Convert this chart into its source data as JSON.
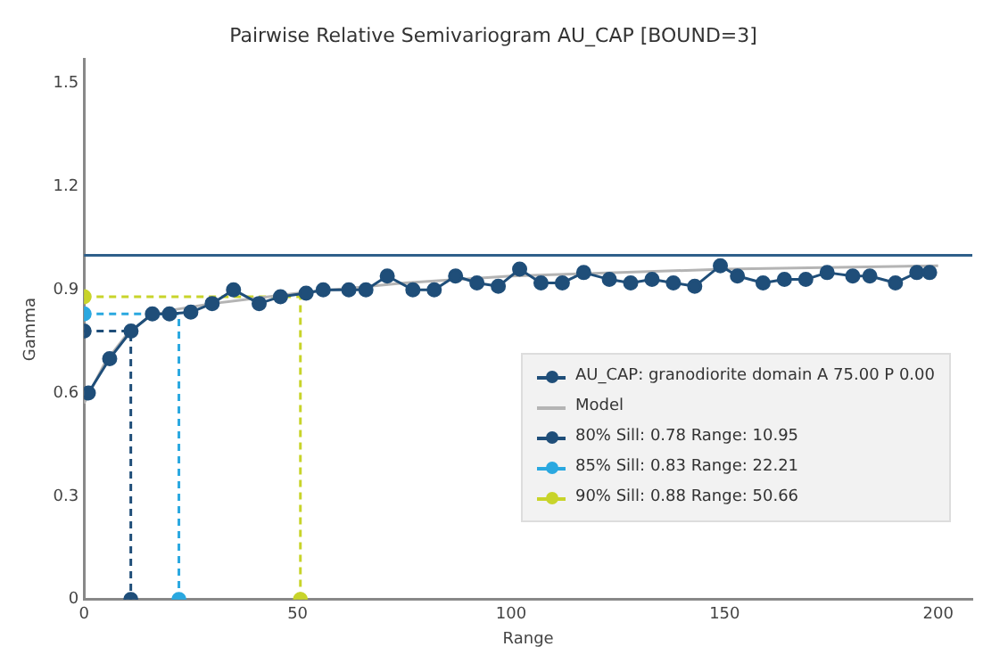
{
  "chart_data": {
    "type": "line",
    "title": "Pairwise Relative Semivariogram AU_CAP [BOUND=3]",
    "xlabel": "Range",
    "ylabel": "Gamma",
    "xlim": [
      0,
      208
    ],
    "xticks": [
      0,
      50,
      100,
      150,
      200
    ],
    "ylim": [
      0,
      1.57
    ],
    "yticks": [
      0,
      0.3,
      0.6,
      0.9,
      1.2,
      1.5
    ],
    "grid": false,
    "legend": "right",
    "ref_lines": [
      {
        "axis": "y",
        "value": 1.0,
        "color": "#2e5f8a"
      }
    ],
    "series": [
      {
        "name": "AU_CAP: granodiorite domain A 75.00 P 0.00",
        "color": "#1f4e79",
        "marker": "circle",
        "line_style": "solid",
        "x": [
          1,
          6,
          11,
          16,
          20,
          25,
          30,
          35,
          41,
          46,
          52,
          56,
          62,
          66,
          71,
          77,
          82,
          87,
          92,
          97,
          102,
          107,
          112,
          117,
          123,
          128,
          133,
          138,
          143,
          149,
          153,
          159,
          164,
          169,
          174,
          180,
          184,
          190,
          195,
          198
        ],
        "values": [
          0.6,
          0.7,
          0.78,
          0.83,
          0.83,
          0.835,
          0.86,
          0.9,
          0.86,
          0.88,
          0.89,
          0.9,
          0.9,
          0.9,
          0.94,
          0.9,
          0.9,
          0.94,
          0.92,
          0.91,
          0.96,
          0.92,
          0.92,
          0.95,
          0.93,
          0.92,
          0.93,
          0.92,
          0.91,
          0.97,
          0.94,
          0.92,
          0.93,
          0.93,
          0.95,
          0.94,
          0.94,
          0.92,
          0.95,
          0.95
        ]
      },
      {
        "name": "Model",
        "color": "#b4b4b4",
        "marker": "none",
        "line_style": "solid",
        "x": [
          0,
          5,
          10,
          15,
          20,
          30,
          50,
          75,
          100,
          150,
          200
        ],
        "values": [
          0.57,
          0.69,
          0.77,
          0.82,
          0.84,
          0.86,
          0.89,
          0.92,
          0.94,
          0.96,
          0.97
        ]
      },
      {
        "name": "80% Sill: 0.78 Range: 10.95",
        "color": "#1f4e79",
        "marker": "circle",
        "line_style": "dashed",
        "x": [
          0,
          10.95,
          10.95
        ],
        "values": [
          0.78,
          0.78,
          0
        ]
      },
      {
        "name": "85% Sill: 0.83 Range: 22.21",
        "color": "#2aa8e0",
        "marker": "circle",
        "line_style": "dashed",
        "x": [
          0,
          22.21,
          22.21
        ],
        "values": [
          0.83,
          0.83,
          0
        ]
      },
      {
        "name": "90% Sill: 0.88 Range: 50.66",
        "color": "#c8d42a",
        "marker": "circle",
        "line_style": "dashed",
        "x": [
          0,
          50.66,
          50.66
        ],
        "values": [
          0.88,
          0.88,
          0
        ]
      }
    ]
  }
}
